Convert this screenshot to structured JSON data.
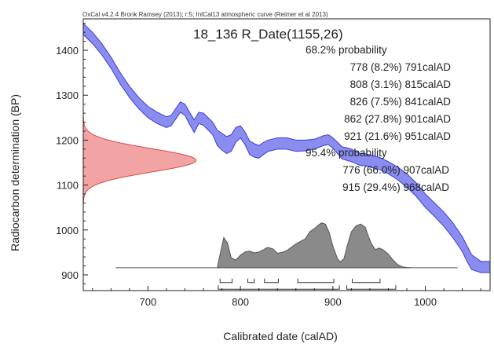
{
  "chart_data": {
    "type": "area",
    "credit": "OxCal v4.2.4 Bronk Ramsey (2013); r:5; IntCal13 atmospheric curve (Reimer et al 2013)",
    "title": "18_136 R_Date(1155,26)",
    "xlabel": "Calibrated date (calAD)",
    "ylabel": "Radiocarbon determination (BP)",
    "xlim": [
      630,
      1070
    ],
    "ylim": [
      865,
      1470
    ],
    "xticks": [
      700,
      800,
      900,
      1000
    ],
    "yticks": [
      900,
      1000,
      1100,
      1200,
      1300,
      1400
    ],
    "grid": false,
    "colors": {
      "curve_fill": "#8a8cef",
      "curve_edge": "#3b3fd6",
      "measurement_fill": "#f2a3a3",
      "measurement_edge": "#d84a4a",
      "posterior_fill": "#8a8a8a",
      "posterior_edge": "#555555"
    },
    "calibration_curve": {
      "name": "IntCal13",
      "x": [
        630,
        640,
        650,
        660,
        670,
        680,
        690,
        700,
        710,
        720,
        725,
        730,
        735,
        740,
        745,
        750,
        755,
        760,
        770,
        775,
        780,
        785,
        790,
        795,
        800,
        805,
        810,
        815,
        820,
        825,
        830,
        840,
        850,
        860,
        870,
        880,
        890,
        895,
        900,
        905,
        910,
        915,
        920,
        925,
        930,
        935,
        940,
        950,
        960,
        970,
        980,
        990,
        1000,
        1010,
        1020,
        1030,
        1040,
        1045,
        1050,
        1060,
        1070
      ],
      "upper": [
        1460,
        1440,
        1415,
        1385,
        1350,
        1320,
        1295,
        1275,
        1262,
        1252,
        1255,
        1270,
        1285,
        1280,
        1262,
        1245,
        1262,
        1260,
        1240,
        1222,
        1215,
        1208,
        1212,
        1228,
        1232,
        1218,
        1198,
        1192,
        1188,
        1195,
        1200,
        1205,
        1205,
        1200,
        1200,
        1202,
        1210,
        1212,
        1205,
        1195,
        1185,
        1183,
        1180,
        1175,
        1170,
        1170,
        1167,
        1162,
        1152,
        1140,
        1125,
        1105,
        1080,
        1060,
        1040,
        1015,
        985,
        965,
        945,
        930,
        930
      ],
      "lower": [
        1435,
        1415,
        1390,
        1360,
        1325,
        1295,
        1270,
        1250,
        1237,
        1228,
        1232,
        1247,
        1262,
        1255,
        1235,
        1217,
        1237,
        1233,
        1212,
        1188,
        1178,
        1170,
        1175,
        1195,
        1205,
        1190,
        1168,
        1162,
        1160,
        1168,
        1175,
        1180,
        1180,
        1175,
        1176,
        1180,
        1188,
        1190,
        1182,
        1170,
        1158,
        1155,
        1152,
        1148,
        1143,
        1143,
        1140,
        1135,
        1125,
        1112,
        1095,
        1075,
        1050,
        1030,
        1008,
        982,
        952,
        930,
        912,
        905,
        905
      ]
    },
    "measurement": {
      "mean_bp": 1155,
      "sd_bp": 26,
      "baseline_x": 630,
      "max_extent_x": 752
    },
    "posterior": {
      "baseline_bp": 916,
      "line_range": [
        665,
        1035
      ],
      "x": [
        775,
        778,
        782,
        786,
        790,
        795,
        800,
        805,
        810,
        815,
        820,
        825,
        828,
        830,
        835,
        840,
        845,
        850,
        860,
        870,
        875,
        880,
        885,
        888,
        892,
        896,
        900,
        905,
        908,
        912,
        915,
        920,
        925,
        930,
        935,
        938,
        942,
        946,
        950,
        955,
        960,
        965,
        970,
        975,
        980,
        985
      ],
      "density": [
        0.0,
        0.3,
        0.67,
        0.55,
        0.22,
        0.17,
        0.28,
        0.35,
        0.37,
        0.33,
        0.35,
        0.4,
        0.44,
        0.45,
        0.42,
        0.32,
        0.34,
        0.38,
        0.53,
        0.64,
        0.8,
        0.87,
        0.96,
        1.0,
        0.97,
        0.78,
        0.48,
        0.2,
        0.13,
        0.2,
        0.45,
        0.8,
        0.93,
        0.97,
        0.9,
        0.72,
        0.52,
        0.4,
        0.44,
        0.39,
        0.3,
        0.17,
        0.07,
        0.02,
        0.005,
        0.0
      ],
      "max_height_bp": 100
    },
    "range_68": [
      {
        "from": 778,
        "to": 791,
        "pct": 8.2
      },
      {
        "from": 808,
        "to": 815,
        "pct": 3.1
      },
      {
        "from": 826,
        "to": 841,
        "pct": 7.5
      },
      {
        "from": 862,
        "to": 901,
        "pct": 27.8
      },
      {
        "from": 921,
        "to": 951,
        "pct": 21.6
      }
    ],
    "range_95": [
      {
        "from": 776,
        "to": 907,
        "pct": 66.0
      },
      {
        "from": 915,
        "to": 968,
        "pct": 29.4
      }
    ],
    "annotations": [
      "68.2% probability",
      "778 (8.2%) 791calAD",
      "808 (3.1%) 815calAD",
      "826 (7.5%) 841calAD",
      "862 (27.8%) 901calAD",
      "921 (21.6%) 951calAD",
      "95.4% probability",
      "776 (66.0%) 907calAD",
      "915 (29.4%) 968calAD"
    ]
  }
}
